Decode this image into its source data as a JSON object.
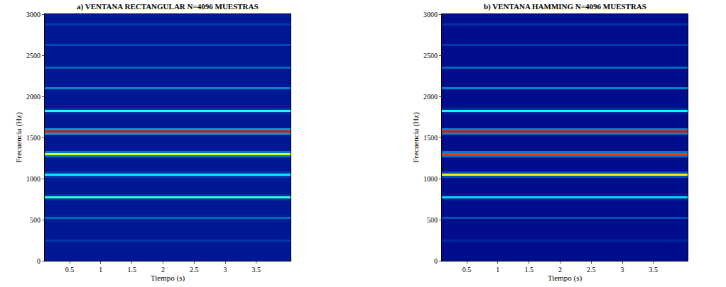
{
  "chart_data": [
    {
      "type": "heatmap",
      "title": "a) VENTANA RECTANGULAR N=4096 MUESTRAS",
      "xlabel": "Tiempo (s)",
      "ylabel": "Frecuencia (Hz)",
      "xlim": [
        0.1,
        4.05
      ],
      "ylim": [
        0,
        3000
      ],
      "xticks": [
        0.5,
        1,
        1.5,
        2,
        2.5,
        3,
        3.5
      ],
      "yticks": [
        0,
        500,
        1000,
        1500,
        2000,
        2500,
        3000
      ],
      "grid": false,
      "color": "Jet",
      "zlim": [
        0,
        1
      ],
      "x": [
        0.1,
        4.05
      ],
      "y": [
        0,
        25,
        50,
        75,
        100,
        125,
        150,
        175,
        200,
        225,
        250,
        275,
        300,
        325,
        350,
        375,
        400,
        425,
        450,
        475,
        500,
        525,
        550,
        575,
        600,
        625,
        650,
        675,
        700,
        725,
        750,
        775,
        800,
        825,
        850,
        875,
        900,
        925,
        950,
        975,
        1000,
        1025,
        1050,
        1075,
        1100,
        1125,
        1150,
        1175,
        1200,
        1225,
        1250,
        1275,
        1300,
        1325,
        1350,
        1375,
        1400,
        1425,
        1450,
        1475,
        1500,
        1525,
        1550,
        1575,
        1600,
        1625,
        1650,
        1675,
        1700,
        1725,
        1750,
        1775,
        1800,
        1825,
        1850,
        1875,
        1900,
        1925,
        1950,
        1975,
        2000,
        2025,
        2050,
        2075,
        2100,
        2125,
        2150,
        2175,
        2200,
        2225,
        2250,
        2275,
        2300,
        2325,
        2350,
        2375,
        2400,
        2425,
        2450,
        2475,
        2500,
        2525,
        2550,
        2575,
        2600,
        2625,
        2650,
        2675,
        2700,
        2725,
        2750,
        2775,
        2800,
        2825,
        2850,
        2875,
        2900,
        2925,
        2950,
        2975,
        3000
      ],
      "z": [
        [
          0.05
        ],
        [
          0.05
        ],
        [
          0.05
        ],
        [
          0.05
        ],
        [
          0.05
        ],
        [
          0.05
        ],
        [
          0.05
        ],
        [
          0.05
        ],
        [
          0.05
        ],
        [
          0.05
        ],
        [
          0.12
        ],
        [
          0.05
        ],
        [
          0.05
        ],
        [
          0.05
        ],
        [
          0.05
        ],
        [
          0.05
        ],
        [
          0.05
        ],
        [
          0.05
        ],
        [
          0.05
        ],
        [
          0.05
        ],
        [
          0.07
        ],
        [
          0.18
        ],
        [
          0.07
        ],
        [
          0.05
        ],
        [
          0.05
        ],
        [
          0.05
        ],
        [
          0.05
        ],
        [
          0.05
        ],
        [
          0.05
        ],
        [
          0.05
        ],
        [
          0.1
        ],
        [
          0.42
        ],
        [
          0.1
        ],
        [
          0.05
        ],
        [
          0.05
        ],
        [
          0.05
        ],
        [
          0.05
        ],
        [
          0.05
        ],
        [
          0.05
        ],
        [
          0.05
        ],
        [
          0.05
        ],
        [
          0.12
        ],
        [
          0.36
        ],
        [
          0.12
        ],
        [
          0.05
        ],
        [
          0.05
        ],
        [
          0.05
        ],
        [
          0.05
        ],
        [
          0.05
        ],
        [
          0.05
        ],
        [
          0.05
        ],
        [
          0.2
        ],
        [
          0.58
        ],
        [
          0.2
        ],
        [
          0.05
        ],
        [
          0.05
        ],
        [
          0.05
        ],
        [
          0.05
        ],
        [
          0.05
        ],
        [
          0.05
        ],
        [
          0.05
        ],
        [
          0.05
        ],
        [
          0.25
        ],
        [
          0.87
        ],
        [
          0.25
        ],
        [
          0.05
        ],
        [
          0.05
        ],
        [
          0.05
        ],
        [
          0.05
        ],
        [
          0.05
        ],
        [
          0.05
        ],
        [
          0.05
        ],
        [
          0.1
        ],
        [
          0.4
        ],
        [
          0.1
        ],
        [
          0.05
        ],
        [
          0.05
        ],
        [
          0.05
        ],
        [
          0.05
        ],
        [
          0.05
        ],
        [
          0.05
        ],
        [
          0.05
        ],
        [
          0.05
        ],
        [
          0.05
        ],
        [
          0.22
        ],
        [
          0.05
        ],
        [
          0.05
        ],
        [
          0.05
        ],
        [
          0.05
        ],
        [
          0.05
        ],
        [
          0.05
        ],
        [
          0.05
        ],
        [
          0.05
        ],
        [
          0.05
        ],
        [
          0.18
        ],
        [
          0.05
        ],
        [
          0.05
        ],
        [
          0.05
        ],
        [
          0.05
        ],
        [
          0.05
        ],
        [
          0.05
        ],
        [
          0.05
        ],
        [
          0.05
        ],
        [
          0.05
        ],
        [
          0.05
        ],
        [
          0.14
        ],
        [
          0.05
        ],
        [
          0.05
        ],
        [
          0.05
        ],
        [
          0.05
        ],
        [
          0.05
        ],
        [
          0.05
        ],
        [
          0.05
        ],
        [
          0.05
        ],
        [
          0.05
        ],
        [
          0.12
        ],
        [
          0.05
        ],
        [
          0.05
        ],
        [
          0.05
        ],
        [
          0.05
        ],
        [
          0.05
        ]
      ]
    },
    {
      "type": "heatmap",
      "title": "b) VENTANA HAMMING N=4096 MUESTRAS",
      "xlabel": "Tiempo (s)",
      "ylabel": "Frecuencia (Hz)",
      "xlim": [
        0.1,
        4.05
      ],
      "ylim": [
        0,
        3000
      ],
      "xticks": [
        0.5,
        1,
        1.5,
        2,
        2.5,
        3,
        3.5
      ],
      "yticks": [
        0,
        500,
        1000,
        1500,
        2000,
        2500,
        3000
      ],
      "grid": false,
      "color": "Jet",
      "zlim": [
        0,
        1
      ],
      "x": [
        0.1,
        4.05
      ],
      "y": [
        0,
        25,
        50,
        75,
        100,
        125,
        150,
        175,
        200,
        225,
        250,
        275,
        300,
        325,
        350,
        375,
        400,
        425,
        450,
        475,
        500,
        525,
        550,
        575,
        600,
        625,
        650,
        675,
        700,
        725,
        750,
        775,
        800,
        825,
        850,
        875,
        900,
        925,
        950,
        975,
        1000,
        1025,
        1050,
        1075,
        1100,
        1125,
        1150,
        1175,
        1200,
        1225,
        1250,
        1275,
        1300,
        1325,
        1350,
        1375,
        1400,
        1425,
        1450,
        1475,
        1500,
        1525,
        1550,
        1575,
        1600,
        1625,
        1650,
        1675,
        1700,
        1725,
        1750,
        1775,
        1800,
        1825,
        1850,
        1875,
        1900,
        1925,
        1950,
        1975,
        2000,
        2025,
        2050,
        2075,
        2100,
        2125,
        2150,
        2175,
        2200,
        2225,
        2250,
        2275,
        2300,
        2325,
        2350,
        2375,
        2400,
        2425,
        2450,
        2475,
        2500,
        2525,
        2550,
        2575,
        2600,
        2625,
        2650,
        2675,
        2700,
        2725,
        2750,
        2775,
        2800,
        2825,
        2850,
        2875,
        2900,
        2925,
        2950,
        2975,
        3000
      ],
      "z": [
        [
          0.03
        ],
        [
          0.03
        ],
        [
          0.03
        ],
        [
          0.03
        ],
        [
          0.03
        ],
        [
          0.03
        ],
        [
          0.03
        ],
        [
          0.03
        ],
        [
          0.03
        ],
        [
          0.03
        ],
        [
          0.08
        ],
        [
          0.03
        ],
        [
          0.03
        ],
        [
          0.03
        ],
        [
          0.03
        ],
        [
          0.03
        ],
        [
          0.03
        ],
        [
          0.03
        ],
        [
          0.03
        ],
        [
          0.03
        ],
        [
          0.03
        ],
        [
          0.15
        ],
        [
          0.03
        ],
        [
          0.03
        ],
        [
          0.03
        ],
        [
          0.03
        ],
        [
          0.03
        ],
        [
          0.03
        ],
        [
          0.03
        ],
        [
          0.03
        ],
        [
          0.06
        ],
        [
          0.33
        ],
        [
          0.06
        ],
        [
          0.03
        ],
        [
          0.03
        ],
        [
          0.03
        ],
        [
          0.03
        ],
        [
          0.03
        ],
        [
          0.03
        ],
        [
          0.03
        ],
        [
          0.03
        ],
        [
          0.15
        ],
        [
          0.64
        ],
        [
          0.15
        ],
        [
          0.03
        ],
        [
          0.03
        ],
        [
          0.03
        ],
        [
          0.03
        ],
        [
          0.03
        ],
        [
          0.03
        ],
        [
          0.03
        ],
        [
          0.2
        ],
        [
          0.82
        ],
        [
          0.2
        ],
        [
          0.03
        ],
        [
          0.03
        ],
        [
          0.03
        ],
        [
          0.03
        ],
        [
          0.03
        ],
        [
          0.03
        ],
        [
          0.03
        ],
        [
          0.03
        ],
        [
          0.22
        ],
        [
          0.87
        ],
        [
          0.22
        ],
        [
          0.03
        ],
        [
          0.03
        ],
        [
          0.03
        ],
        [
          0.03
        ],
        [
          0.03
        ],
        [
          0.03
        ],
        [
          0.03
        ],
        [
          0.08
        ],
        [
          0.38
        ],
        [
          0.08
        ],
        [
          0.03
        ],
        [
          0.03
        ],
        [
          0.03
        ],
        [
          0.03
        ],
        [
          0.03
        ],
        [
          0.03
        ],
        [
          0.03
        ],
        [
          0.03
        ],
        [
          0.03
        ],
        [
          0.22
        ],
        [
          0.03
        ],
        [
          0.03
        ],
        [
          0.03
        ],
        [
          0.03
        ],
        [
          0.03
        ],
        [
          0.03
        ],
        [
          0.03
        ],
        [
          0.03
        ],
        [
          0.03
        ],
        [
          0.18
        ],
        [
          0.03
        ],
        [
          0.03
        ],
        [
          0.03
        ],
        [
          0.03
        ],
        [
          0.03
        ],
        [
          0.03
        ],
        [
          0.03
        ],
        [
          0.03
        ],
        [
          0.03
        ],
        [
          0.03
        ],
        [
          0.12
        ],
        [
          0.03
        ],
        [
          0.03
        ],
        [
          0.03
        ],
        [
          0.03
        ],
        [
          0.03
        ],
        [
          0.03
        ],
        [
          0.03
        ],
        [
          0.03
        ],
        [
          0.03
        ],
        [
          0.1
        ],
        [
          0.03
        ],
        [
          0.03
        ],
        [
          0.03
        ],
        [
          0.03
        ],
        [
          0.03
        ]
      ]
    }
  ]
}
